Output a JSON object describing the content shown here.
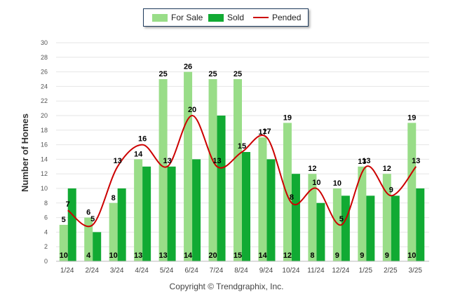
{
  "chart_data": {
    "type": "bar",
    "categories": [
      "1/24",
      "2/24",
      "3/24",
      "4/24",
      "5/24",
      "6/24",
      "7/24",
      "8/24",
      "9/24",
      "10/24",
      "11/24",
      "12/24",
      "1/25",
      "2/25",
      "3/25"
    ],
    "series": [
      {
        "name": "For Sale",
        "type": "bar",
        "color": "#99dd88",
        "values": [
          5,
          6,
          8,
          14,
          25,
          26,
          25,
          25,
          17,
          19,
          12,
          10,
          13,
          12,
          19
        ]
      },
      {
        "name": "Sold",
        "type": "bar",
        "color": "#11aa33",
        "values": [
          10,
          4,
          10,
          13,
          13,
          14,
          20,
          15,
          14,
          12,
          8,
          9,
          9,
          9,
          10
        ]
      },
      {
        "name": "Pended",
        "type": "line",
        "color": "#cc0000",
        "values": [
          7,
          5,
          13,
          16,
          13,
          20,
          13,
          15,
          17,
          8,
          10,
          5,
          13,
          9,
          13
        ]
      }
    ],
    "ylabel": "Number of Homes",
    "xlabel": "",
    "ylim": [
      0,
      30
    ],
    "yticks": [
      0,
      2,
      4,
      6,
      8,
      10,
      12,
      14,
      16,
      18,
      20,
      22,
      24,
      26,
      28,
      30
    ],
    "grid": true,
    "legend_position": "top-center",
    "footer": "Copyright © Trendgraphix, Inc."
  }
}
